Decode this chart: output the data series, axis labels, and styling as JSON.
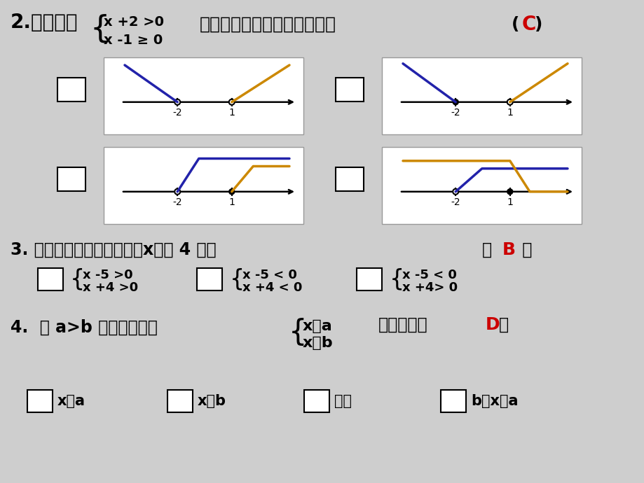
{
  "bg_color": "#cecece",
  "blue": "#2222aa",
  "orange": "#cc8800",
  "black": "#000000",
  "white": "#ffffff",
  "red": "#cc0000",
  "q2_title": "2.不等式组",
  "q2_sys1": "x +2 >0",
  "q2_sys2": "x -1 ≥ 0",
  "q2_suffix": "的解集在数轴上表示正确的是",
  "q2_ans_pre": "(",
  "q2_ans": "C",
  "q2_ans_post": ")",
  "q3_text1": "3. 下列不等式组中，解集为x＜－ 4 的是",
  "q3_ans": "B",
  "q3_A1": "x -5 >0",
  "q3_A2": "x +4 >0",
  "q3_B1": "x -5 < 0",
  "q3_B2": "x +4 < 0",
  "q3_C1": "x -5 < 0",
  "q3_C2": "x +4> 0",
  "q4_text": "4.  设 a>b ，则不等式组",
  "q4_sys1": "x＜a",
  "q4_sys2": "x＞b",
  "q4_suffix": "的解集是（",
  "q4_ans": "D",
  "q4_ans_post": "）",
  "q4_A": "x＜a",
  "q4_B": "x＞b",
  "q4_C": "无解",
  "q4_D": "b＜x＜a"
}
